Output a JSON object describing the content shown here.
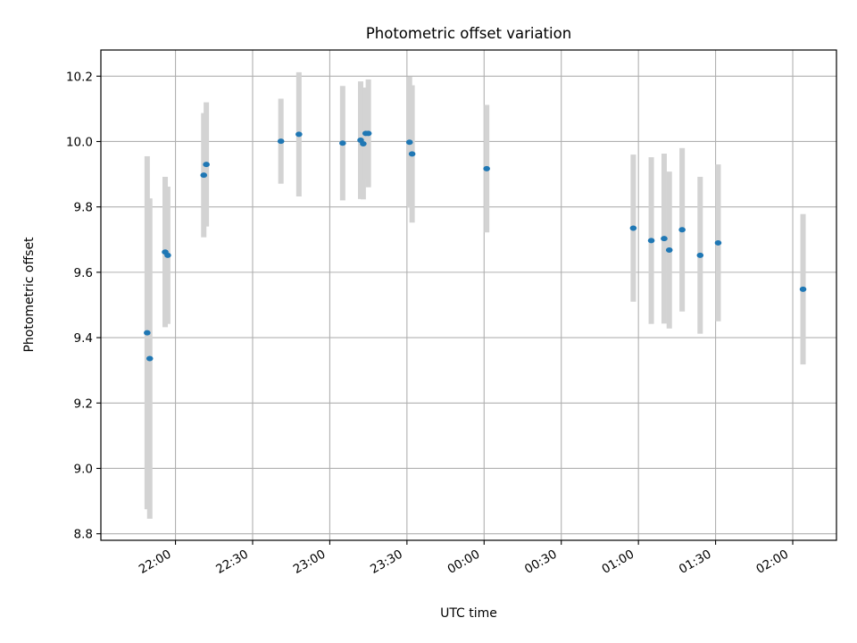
{
  "chart_data": {
    "type": "scatter",
    "title": "Photometric offset variation",
    "xlabel": "UTC time",
    "ylabel": "Photometric offset",
    "x_is_time": true,
    "xlim": [
      "21:31",
      "02:17"
    ],
    "ylim": [
      8.78,
      10.28
    ],
    "xticks": [
      "22:00",
      "22:30",
      "23:00",
      "23:30",
      "00:00",
      "00:30",
      "01:00",
      "01:30",
      "02:00"
    ],
    "yticks": [
      "8.8",
      "9.0",
      "9.2",
      "9.4",
      "9.6",
      "9.8",
      "10.0",
      "10.2"
    ],
    "grid": true,
    "colors": {
      "point": "#1f77b4",
      "errorbar": "#d3d3d3",
      "grid": "#b0b0b0"
    },
    "series": [
      {
        "points": [
          {
            "x": "21:49",
            "y": 9.415,
            "yerr": 0.54
          },
          {
            "x": "21:50",
            "y": 9.336,
            "yerr": 0.49
          },
          {
            "x": "21:56",
            "y": 9.662,
            "yerr": 0.23
          },
          {
            "x": "21:57",
            "y": 9.652,
            "yerr": 0.21
          },
          {
            "x": "22:11",
            "y": 9.897,
            "yerr": 0.19
          },
          {
            "x": "22:12",
            "y": 9.93,
            "yerr": 0.19
          },
          {
            "x": "22:41",
            "y": 10.001,
            "yerr": 0.13
          },
          {
            "x": "22:48",
            "y": 10.022,
            "yerr": 0.19
          },
          {
            "x": "23:05",
            "y": 9.995,
            "yerr": 0.175
          },
          {
            "x": "23:12",
            "y": 10.004,
            "yerr": 0.18
          },
          {
            "x": "23:13",
            "y": 9.993,
            "yerr": 0.17
          },
          {
            "x": "23:14",
            "y": 10.025,
            "yerr": 0.14
          },
          {
            "x": "23:15",
            "y": 10.025,
            "yerr": 0.165
          },
          {
            "x": "23:31",
            "y": 9.998,
            "yerr": 0.2
          },
          {
            "x": "23:32",
            "y": 9.962,
            "yerr": 0.21
          },
          {
            "x": "00:01",
            "y": 9.917,
            "yerr": 0.195
          },
          {
            "x": "00:58",
            "y": 9.735,
            "yerr": 0.225
          },
          {
            "x": "01:05",
            "y": 9.697,
            "yerr": 0.255
          },
          {
            "x": "01:10",
            "y": 9.703,
            "yerr": 0.26
          },
          {
            "x": "01:12",
            "y": 9.668,
            "yerr": 0.24
          },
          {
            "x": "01:17",
            "y": 9.73,
            "yerr": 0.25
          },
          {
            "x": "01:24",
            "y": 9.652,
            "yerr": 0.24
          },
          {
            "x": "01:31",
            "y": 9.69,
            "yerr": 0.24
          },
          {
            "x": "02:04",
            "y": 9.548,
            "yerr": 0.23
          }
        ]
      }
    ]
  }
}
